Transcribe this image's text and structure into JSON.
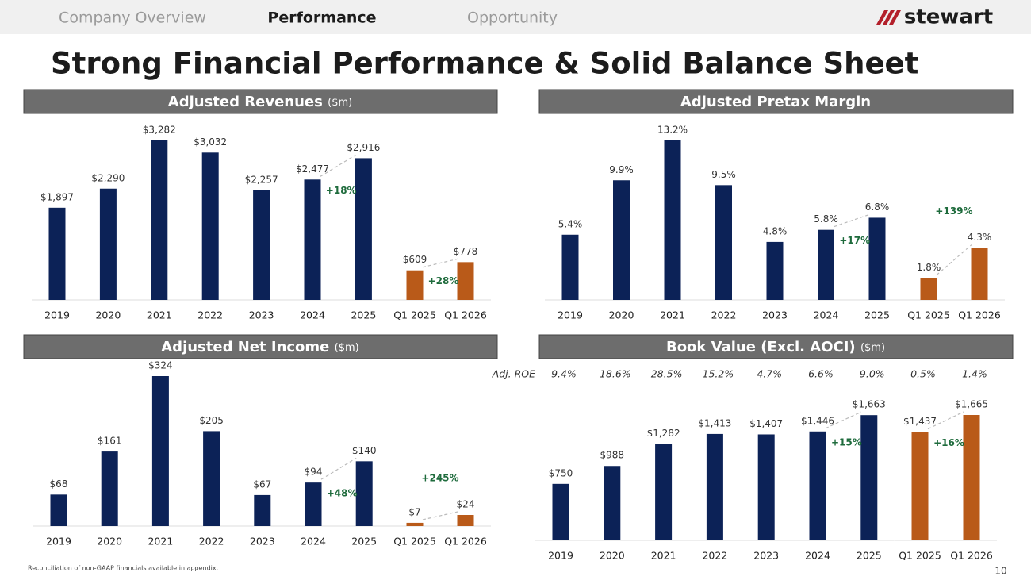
{
  "nav": {
    "tabs": [
      "Company Overview",
      "Performance",
      "Opportunity"
    ],
    "active": 1,
    "logo": "stewart"
  },
  "title": "Strong Financial Performance & Solid Balance Sheet",
  "footnote": "Reconciliation of non-GAAP financials available in appendix.",
  "page_number": "10",
  "chart_data": [
    {
      "type": "bar",
      "title": "Adjusted Revenues",
      "subtitle": "($m)",
      "categories": [
        "2019",
        "2020",
        "2021",
        "2022",
        "2023",
        "2024",
        "2025",
        "Q1 2025",
        "Q1 2026"
      ],
      "values": [
        1897,
        2290,
        3282,
        3032,
        2257,
        2477,
        2916,
        609,
        778
      ],
      "value_labels": [
        "$1,897",
        "$2,290",
        "$3,282",
        "$3,032",
        "$2,257",
        "$2,477",
        "$2,916",
        "$609",
        "$778"
      ],
      "colors": [
        "#0c2257",
        "#0c2257",
        "#0c2257",
        "#0c2257",
        "#0c2257",
        "#0c2257",
        "#0c2257",
        "#b95a19",
        "#b95a19"
      ],
      "annotations": [
        "+18%",
        "+28%"
      ]
    },
    {
      "type": "bar",
      "title": "Adjusted Pretax Margin",
      "categories": [
        "2019",
        "2020",
        "2021",
        "2022",
        "2023",
        "2024",
        "2025",
        "Q1 2025",
        "Q1 2026"
      ],
      "values": [
        5.4,
        9.9,
        13.2,
        9.5,
        4.8,
        5.8,
        6.8,
        1.8,
        4.3
      ],
      "value_labels": [
        "5.4%",
        "9.9%",
        "13.2%",
        "9.5%",
        "4.8%",
        "5.8%",
        "6.8%",
        "1.8%",
        "4.3%"
      ],
      "colors": [
        "#0c2257",
        "#0c2257",
        "#0c2257",
        "#0c2257",
        "#0c2257",
        "#0c2257",
        "#0c2257",
        "#b95a19",
        "#b95a19"
      ],
      "annotations": [
        "+17%",
        "+139%"
      ]
    },
    {
      "type": "bar",
      "title": "Adjusted Net Income",
      "subtitle": "($m)",
      "categories": [
        "2019",
        "2020",
        "2021",
        "2022",
        "2023",
        "2024",
        "2025",
        "Q1 2025",
        "Q1 2026"
      ],
      "values": [
        68,
        161,
        324,
        205,
        67,
        94,
        140,
        7,
        24
      ],
      "value_labels": [
        "$68",
        "$161",
        "$324",
        "$205",
        "$67",
        "$94",
        "$140",
        "$7",
        "$24"
      ],
      "colors": [
        "#0c2257",
        "#0c2257",
        "#0c2257",
        "#0c2257",
        "#0c2257",
        "#0c2257",
        "#0c2257",
        "#b95a19",
        "#b95a19"
      ],
      "annotations": [
        "+48%",
        "+245%"
      ]
    },
    {
      "type": "bar",
      "title": "Book Value (Excl. AOCI)",
      "subtitle": "($m)",
      "categories": [
        "2019",
        "2020",
        "2021",
        "2022",
        "2023",
        "2024",
        "2025",
        "Q1 2025",
        "Q1 2026"
      ],
      "values": [
        750,
        988,
        1282,
        1413,
        1407,
        1446,
        1663,
        1437,
        1665
      ],
      "value_labels": [
        "$750",
        "$988",
        "$1,282",
        "$1,413",
        "$1,407",
        "$1,446",
        "$1,663",
        "$1,437",
        "$1,665"
      ],
      "colors": [
        "#0c2257",
        "#0c2257",
        "#0c2257",
        "#0c2257",
        "#0c2257",
        "#0c2257",
        "#0c2257",
        "#b95a19",
        "#b95a19"
      ],
      "annotations": [
        "+15%",
        "+16%"
      ],
      "roe": {
        "label": "Adj. ROE",
        "values": [
          9.4,
          18.6,
          28.5,
          15.2,
          4.7,
          6.6,
          9.0,
          0.5,
          1.4
        ],
        "value_labels": [
          "9.4%",
          "18.6%",
          "28.5%",
          "15.2%",
          "4.7%",
          "6.6%",
          "9.0%",
          "0.5%",
          "1.4%"
        ]
      }
    }
  ]
}
